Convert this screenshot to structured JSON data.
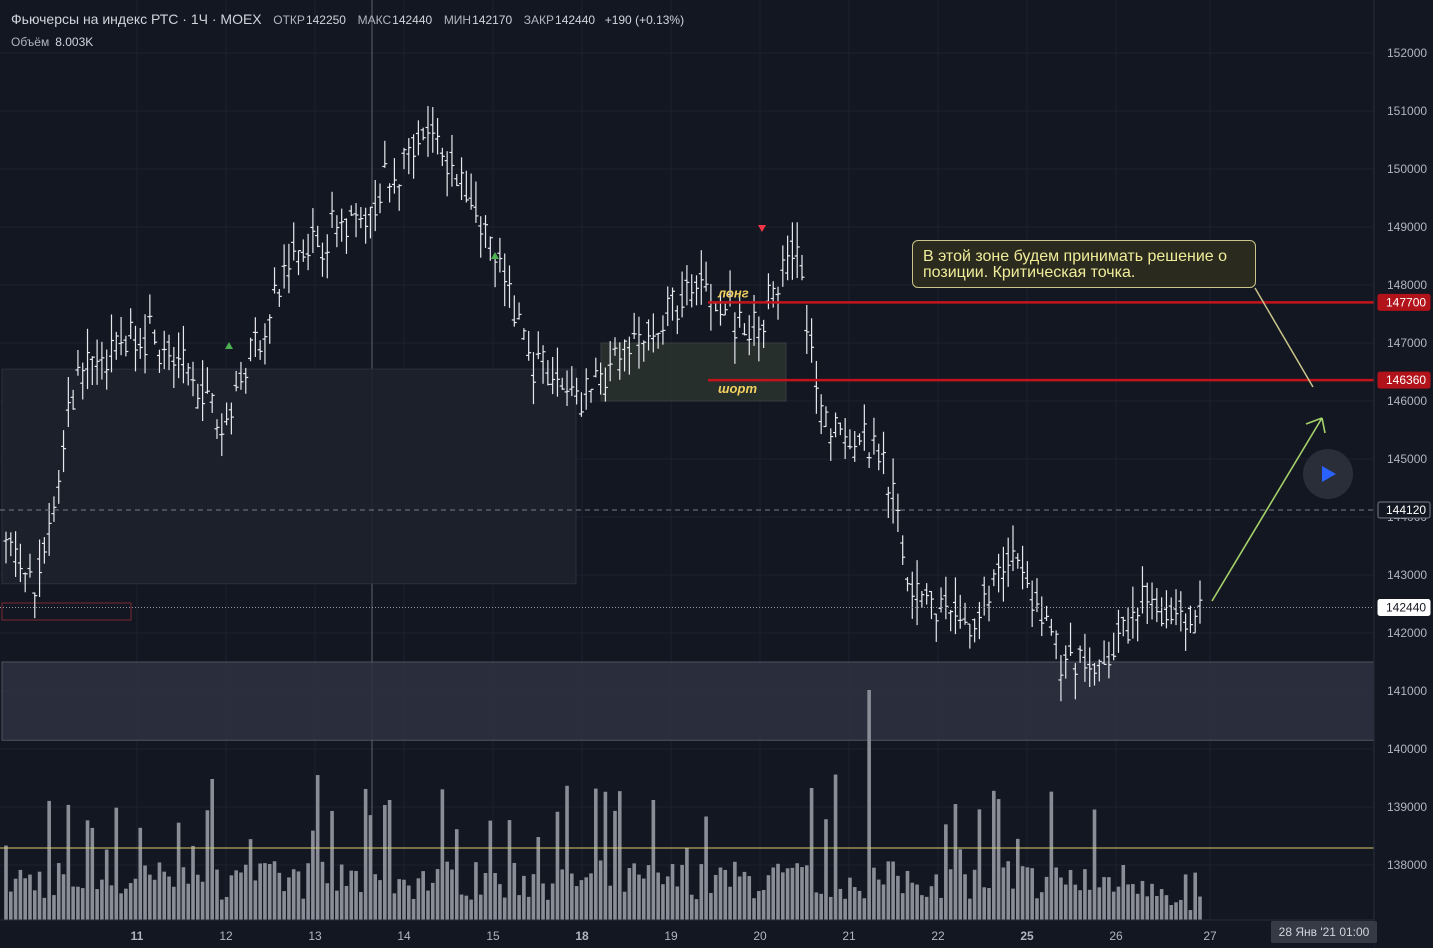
{
  "header": {
    "symbol": "Фьючерсы на индекс РТС · 1Ч · MOEX",
    "open_label": "ОТКР",
    "open_value": "142250",
    "high_label": "МАКС",
    "high_value": "142440",
    "low_label": "МИН",
    "low_value": "142170",
    "close_label": "ЗАКР",
    "close_value": "142440",
    "change": "+190 (+0.13%)"
  },
  "volume_legend": {
    "label": "Объём",
    "value": "8.003K"
  },
  "annotations": {
    "callout_text": "В этой зоне будем принимать решение о позиции. Критическая точка.",
    "long_label": "лонг",
    "short_label": "шорт"
  },
  "crosshair_date": "28 Янв '21  01:00",
  "chart_data": {
    "type": "candlestick (OHLC bars) with volume histogram",
    "y_axis": {
      "ticks": [
        138000,
        139000,
        140000,
        141000,
        142000,
        143000,
        144000,
        145000,
        146000,
        147000,
        148000,
        149000,
        150000,
        151000,
        152000
      ],
      "range": [
        137200,
        152600
      ]
    },
    "x_axis": {
      "ticks": [
        "11",
        "12",
        "13",
        "14",
        "15",
        "18",
        "19",
        "20",
        "21",
        "22",
        "25",
        "26",
        "27"
      ]
    },
    "price_labels": [
      {
        "value": 147700,
        "color": "#b2131a"
      },
      {
        "value": 146360,
        "color": "#b2131a"
      },
      {
        "value": 144120,
        "color": "#131722"
      },
      {
        "value": 142440,
        "color": "#ffffff"
      }
    ],
    "horizontal_lines": [
      {
        "value": 147700,
        "color": "#c4141b",
        "style": "solid"
      },
      {
        "value": 146360,
        "color": "#c4141b",
        "style": "solid"
      },
      {
        "value": 144120,
        "color": "#787b86",
        "style": "dashed"
      },
      {
        "value": 142440,
        "color": "#9598a1",
        "style": "dotted"
      }
    ],
    "zones": [
      {
        "x0": "9",
        "x1": "17.9",
        "y_top": 146550,
        "y_bottom": 142850
      },
      {
        "x0": "18.2",
        "x1": "20.3",
        "y_top": 147000,
        "y_bottom": 146000
      },
      {
        "x0": "start",
        "x1": "end",
        "y_top": 141500,
        "y_bottom": 140150
      }
    ],
    "series_path": [
      [
        0,
        143500
      ],
      [
        6,
        142600
      ],
      [
        15,
        146500
      ],
      [
        30,
        147200
      ],
      [
        45,
        145700
      ],
      [
        60,
        148500
      ],
      [
        75,
        149300
      ],
      [
        88,
        150600
      ],
      [
        96,
        149800
      ],
      [
        110,
        146700
      ],
      [
        120,
        146000
      ],
      [
        135,
        147200
      ],
      [
        145,
        148100
      ],
      [
        155,
        147100
      ],
      [
        165,
        148600
      ],
      [
        170,
        145600
      ],
      [
        183,
        145200
      ],
      [
        188,
        143000
      ],
      [
        200,
        142000
      ],
      [
        210,
        143400
      ],
      [
        220,
        141500
      ],
      [
        228,
        141300
      ],
      [
        237,
        142500
      ],
      [
        247,
        142200
      ],
      [
        250,
        142440
      ]
    ],
    "volume_peaks": [
      {
        "bar": 80,
        "value": "high"
      },
      {
        "bar": 135,
        "value": "high"
      },
      {
        "bar": 180,
        "value": "max"
      }
    ]
  }
}
